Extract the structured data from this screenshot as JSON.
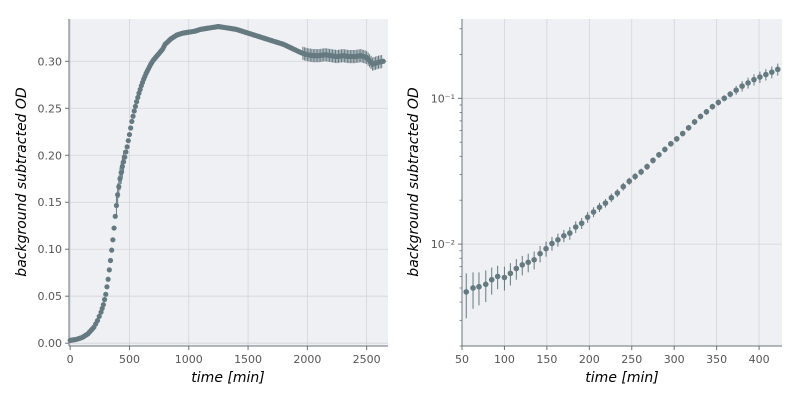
{
  "colors": {
    "marker": "#657a80",
    "panel_background": "#eff0f4",
    "grid": "#d4d4dc",
    "spine": "#6a737a"
  },
  "chart_data": [
    {
      "type": "scatter",
      "title": "",
      "xlabel": "time [min]",
      "ylabel": "background subtracted OD",
      "xlim": [
        -10,
        2680
      ],
      "ylim": [
        -0.003,
        0.345
      ],
      "xscale": "linear",
      "yscale": "linear",
      "grid": true,
      "legend": "none",
      "x_ticks": [
        "0",
        "500",
        "1000",
        "1500",
        "2000",
        "2500"
      ],
      "y_ticks": [
        "0.00",
        "0.05",
        "0.10",
        "0.15",
        "0.20",
        "0.25",
        "0.30"
      ],
      "error_bars": "small, mostly within marker size; larger scatter after 2000 min",
      "series": [
        {
          "marker": "circle",
          "x": [
            0,
            50,
            100,
            150,
            200,
            230,
            260,
            280,
            300,
            320,
            340,
            360,
            380,
            400,
            420,
            440,
            460,
            480,
            500,
            520,
            540,
            560,
            580,
            600,
            620,
            640,
            660,
            680,
            700,
            720,
            740,
            760,
            780,
            800,
            850,
            900,
            950,
            1000,
            1050,
            1100,
            1150,
            1200,
            1250,
            1300,
            1350,
            1400,
            1450,
            1500,
            1550,
            1600,
            1650,
            1700,
            1750,
            1800,
            1850,
            1900,
            1950,
            2000,
            2050,
            2100,
            2150,
            2200,
            2250,
            2300,
            2350,
            2400,
            2450,
            2500,
            2550,
            2600,
            2640
          ],
          "y": [
            0.003,
            0.004,
            0.006,
            0.01,
            0.017,
            0.024,
            0.033,
            0.041,
            0.052,
            0.068,
            0.088,
            0.11,
            0.135,
            0.158,
            0.175,
            0.188,
            0.198,
            0.209,
            0.222,
            0.236,
            0.247,
            0.257,
            0.266,
            0.274,
            0.281,
            0.287,
            0.292,
            0.297,
            0.301,
            0.304,
            0.307,
            0.31,
            0.313,
            0.318,
            0.324,
            0.328,
            0.33,
            0.331,
            0.332,
            0.334,
            0.335,
            0.336,
            0.337,
            0.336,
            0.335,
            0.334,
            0.332,
            0.33,
            0.328,
            0.326,
            0.324,
            0.322,
            0.32,
            0.318,
            0.315,
            0.312,
            0.309,
            0.307,
            0.306,
            0.306,
            0.307,
            0.306,
            0.305,
            0.306,
            0.305,
            0.305,
            0.306,
            0.304,
            0.297,
            0.299,
            0.3
          ]
        }
      ]
    },
    {
      "type": "scatter",
      "title": "",
      "xlabel": "time [min]",
      "ylabel": "background subtracted OD",
      "xlim": [
        50,
        427
      ],
      "ylim": [
        0.002,
        0.35
      ],
      "xscale": "linear",
      "yscale": "log",
      "grid": true,
      "legend": "none",
      "x_ticks": [
        "50",
        "100",
        "150",
        "200",
        "250",
        "300",
        "350",
        "400"
      ],
      "y_ticks": [
        "10⁻²",
        "10⁻¹"
      ],
      "series": [
        {
          "marker": "circle",
          "x": [
            55,
            63,
            70,
            78,
            85,
            92,
            100,
            107,
            114,
            121,
            128,
            135,
            142,
            149,
            156,
            163,
            170,
            177,
            184,
            191,
            198,
            205,
            212,
            219,
            226,
            233,
            240,
            247,
            254,
            261,
            268,
            275,
            282,
            289,
            296,
            303,
            310,
            317,
            324,
            331,
            338,
            345,
            352,
            359,
            366,
            373,
            380,
            387,
            394,
            401,
            408,
            415,
            422
          ],
          "y": [
            0.0047,
            0.005,
            0.0051,
            0.0053,
            0.0057,
            0.006,
            0.0059,
            0.0063,
            0.0068,
            0.0072,
            0.0075,
            0.0078,
            0.0086,
            0.0093,
            0.0101,
            0.0107,
            0.0114,
            0.0119,
            0.0131,
            0.0139,
            0.0153,
            0.0166,
            0.0179,
            0.0191,
            0.0208,
            0.0224,
            0.0248,
            0.027,
            0.0291,
            0.0313,
            0.034,
            0.0375,
            0.041,
            0.0446,
            0.0488,
            0.0527,
            0.0573,
            0.0628,
            0.0689,
            0.0751,
            0.0808,
            0.0877,
            0.0937,
            0.1001,
            0.1068,
            0.1137,
            0.1213,
            0.1275,
            0.1343,
            0.14,
            0.1455,
            0.1512,
            0.158
          ],
          "err": [
            0.0016,
            0.0014,
            0.0013,
            0.0013,
            0.0012,
            0.0011,
            0.0011,
            0.0011,
            0.0011,
            0.0011,
            0.0011,
            0.0011,
            0.0011,
            0.0011,
            0.0011,
            0.0011,
            0.0011,
            0.0012,
            0.0012,
            0.0012,
            0.0013,
            0.0013,
            0.0013,
            0.0013,
            0.0014,
            0.0014,
            0.0015,
            0.0015,
            0.0016,
            0.0016,
            0.0017,
            0.0018,
            0.0019,
            0.002,
            0.0022,
            0.0024,
            0.0026,
            0.0029,
            0.0032,
            0.0035,
            0.0038,
            0.0041,
            0.0045,
            0.0049,
            0.0053,
            0.008,
            0.01,
            0.011,
            0.012,
            0.0125,
            0.013,
            0.014,
            0.015
          ]
        }
      ]
    }
  ]
}
